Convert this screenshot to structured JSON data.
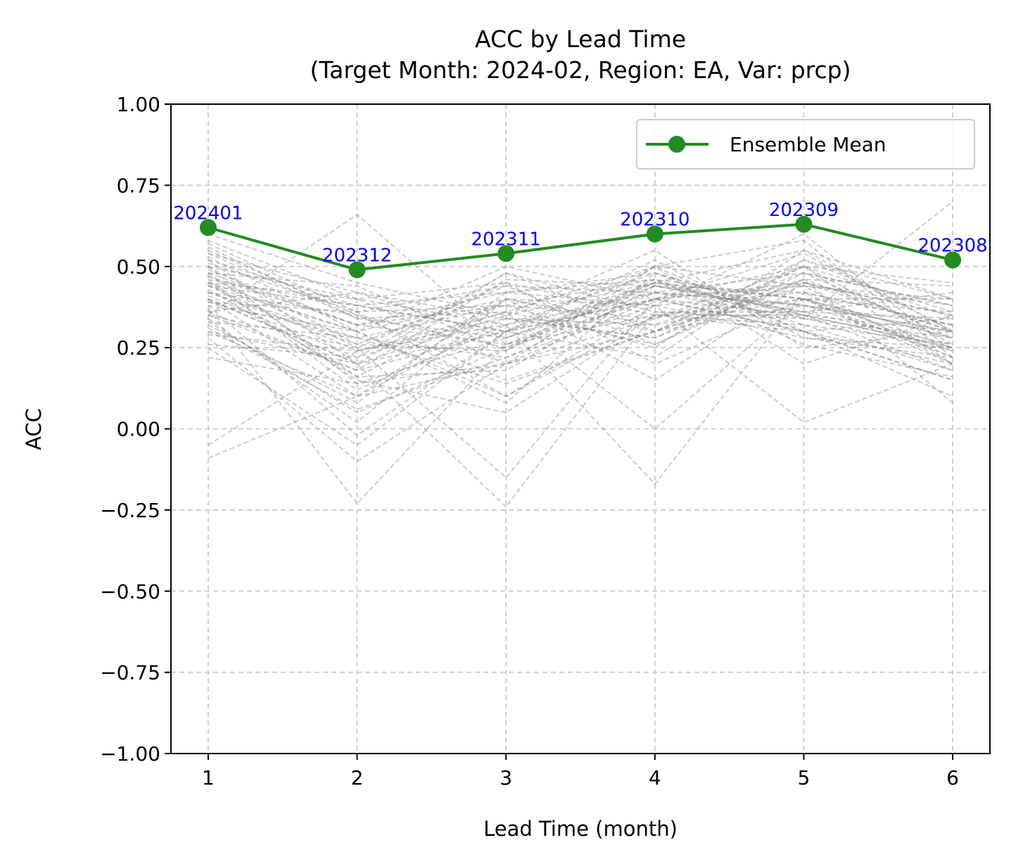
{
  "chart_data": {
    "type": "line",
    "title": "ACC by Lead Time",
    "subtitle": "(Target Month: 2024-02, Region: EA, Var: prcp)",
    "xlabel": "Lead Time (month)",
    "ylabel": "ACC",
    "x": [
      1,
      2,
      3,
      4,
      5,
      6
    ],
    "xticks": [
      "1",
      "2",
      "3",
      "4",
      "5",
      "6"
    ],
    "xlim": [
      0.75,
      6.25
    ],
    "ylim": [
      -1.0,
      1.0
    ],
    "yticks": [
      "−1.00",
      "−0.75",
      "−0.50",
      "−0.25",
      "0.00",
      "0.25",
      "0.50",
      "0.75",
      "1.00"
    ],
    "grid": true,
    "legend_position": "top-right",
    "colors": {
      "ensemble_mean": "#228b22",
      "point_labels": "#0000ff",
      "members": "#808080",
      "grid": "#d0d0d0"
    },
    "series": [
      {
        "name": "Ensemble Mean",
        "values": [
          0.62,
          0.49,
          0.54,
          0.6,
          0.63,
          0.52
        ],
        "point_labels": [
          "202401",
          "202312",
          "202311",
          "202310",
          "202309",
          "202308"
        ]
      }
    ],
    "members": [
      [
        0.45,
        0.3,
        0.1,
        0.35,
        0.4,
        0.25
      ],
      [
        0.4,
        0.2,
        0.3,
        0.45,
        0.35,
        0.3
      ],
      [
        0.55,
        0.35,
        0.25,
        0.4,
        0.5,
        0.2
      ],
      [
        0.3,
        0.1,
        0.4,
        0.3,
        0.45,
        0.35
      ],
      [
        0.5,
        0.4,
        0.2,
        0.5,
        0.3,
        0.15
      ],
      [
        0.35,
        0.25,
        0.45,
        0.2,
        0.4,
        0.4
      ],
      [
        0.6,
        0.45,
        0.35,
        0.45,
        0.55,
        0.3
      ],
      [
        0.25,
        -0.05,
        0.3,
        0.4,
        0.35,
        0.25
      ],
      [
        0.45,
        0.15,
        0.05,
        0.35,
        0.3,
        0.2
      ],
      [
        0.38,
        0.3,
        0.4,
        0.15,
        0.45,
        0.35
      ],
      [
        0.52,
        0.2,
        0.35,
        0.55,
        0.25,
        0.3
      ],
      [
        0.42,
        0.35,
        0.15,
        0.3,
        0.5,
        0.45
      ],
      [
        0.33,
        0.05,
        0.25,
        0.45,
        0.4,
        0.2
      ],
      [
        0.58,
        0.4,
        0.45,
        0.35,
        0.35,
        0.25
      ],
      [
        0.47,
        0.25,
        -0.15,
        0.4,
        0.45,
        0.3
      ],
      [
        0.36,
        0.18,
        0.3,
        0.5,
        0.2,
        0.35
      ],
      [
        0.49,
        0.32,
        0.38,
        0.25,
        0.55,
        0.4
      ],
      [
        0.28,
        -0.1,
        0.2,
        0.4,
        0.3,
        0.15
      ],
      [
        0.54,
        0.42,
        0.28,
        0.45,
        0.4,
        0.28
      ],
      [
        0.41,
        0.22,
        0.48,
        0.3,
        0.38,
        0.32
      ],
      [
        0.46,
        0.12,
        0.32,
        -0.17,
        0.42,
        0.22
      ],
      [
        0.39,
        0.28,
        0.22,
        0.42,
        0.48,
        0.38
      ],
      [
        0.51,
        0.36,
        0.1,
        0.38,
        0.28,
        0.25
      ],
      [
        0.32,
        0.08,
        0.42,
        0.48,
        0.35,
        0.18
      ],
      [
        0.44,
        0.38,
        0.3,
        0.22,
        0.52,
        0.34
      ],
      [
        0.37,
        -0.23,
        0.26,
        0.35,
        0.32,
        0.26
      ],
      [
        0.53,
        0.3,
        0.5,
        0.4,
        0.44,
        0.2
      ],
      [
        0.43,
        0.16,
        0.18,
        0.44,
        0.36,
        0.42
      ],
      [
        0.29,
        0.24,
        0.34,
        0.28,
        0.46,
        0.3
      ],
      [
        0.48,
        0.44,
        0.24,
        0.46,
        0.26,
        0.16
      ],
      [
        0.34,
        0.02,
        0.4,
        0.32,
        0.4,
        0.36
      ],
      [
        0.56,
        0.34,
        0.36,
        0.5,
        0.58,
        0.22
      ],
      [
        0.4,
        0.2,
        -0.24,
        0.36,
        0.34,
        0.28
      ],
      [
        0.22,
        0.14,
        0.28,
        0.42,
        0.38,
        0.24
      ],
      [
        0.5,
        0.26,
        0.44,
        0.26,
        0.48,
        0.38
      ],
      [
        0.45,
        0.4,
        0.32,
        0.48,
        0.3,
        0.1
      ],
      [
        0.31,
        0.06,
        0.22,
        0.38,
        0.42,
        0.32
      ],
      [
        0.57,
        0.36,
        0.38,
        0.34,
        0.5,
        0.26
      ],
      [
        0.35,
        0.18,
        0.46,
        0.44,
        0.36,
        0.34
      ],
      [
        0.42,
        0.28,
        0.14,
        0.3,
        0.44,
        0.4
      ],
      [
        0.38,
        -0.02,
        0.3,
        0.52,
        0.28,
        0.22
      ],
      [
        0.47,
        0.32,
        0.26,
        0.4,
        0.54,
        0.3
      ],
      [
        0.26,
        0.22,
        0.36,
        0.0,
        0.4,
        0.28
      ],
      [
        0.52,
        0.38,
        0.42,
        0.46,
        0.32,
        0.18
      ],
      [
        0.4,
        0.1,
        0.2,
        0.34,
        0.46,
        0.44
      ],
      [
        -0.05,
        0.24,
        0.32,
        0.42,
        0.38,
        0.3
      ],
      [
        0.44,
        0.3,
        0.08,
        0.48,
        0.34,
        0.24
      ],
      [
        0.36,
        0.42,
        0.34,
        0.28,
        0.5,
        0.36
      ],
      [
        0.48,
        0.16,
        0.4,
        0.38,
        0.02,
        0.2
      ],
      [
        0.54,
        0.34,
        0.28,
        0.44,
        0.42,
        0.32
      ],
      [
        0.3,
        0.2,
        0.48,
        0.36,
        0.36,
        0.26
      ],
      [
        0.42,
        0.26,
        0.24,
        0.5,
        0.44,
        0.38
      ],
      [
        -0.09,
        0.1,
        0.34,
        0.32,
        0.48,
        0.28
      ],
      [
        0.46,
        0.38,
        0.3,
        0.4,
        0.3,
        0.34
      ],
      [
        0.33,
        0.28,
        0.38,
        0.46,
        0.4,
        0.22
      ],
      [
        0.5,
        0.14,
        0.2,
        0.3,
        0.52,
        0.4
      ],
      [
        0.39,
        0.36,
        0.44,
        0.42,
        0.34,
        0.7
      ],
      [
        0.44,
        0.24,
        0.36,
        0.26,
        0.46,
        0.08
      ],
      [
        0.35,
        0.66,
        0.26,
        0.44,
        0.38,
        0.3
      ],
      [
        0.48,
        0.32,
        0.42,
        0.38,
        0.6,
        0.24
      ]
    ]
  }
}
